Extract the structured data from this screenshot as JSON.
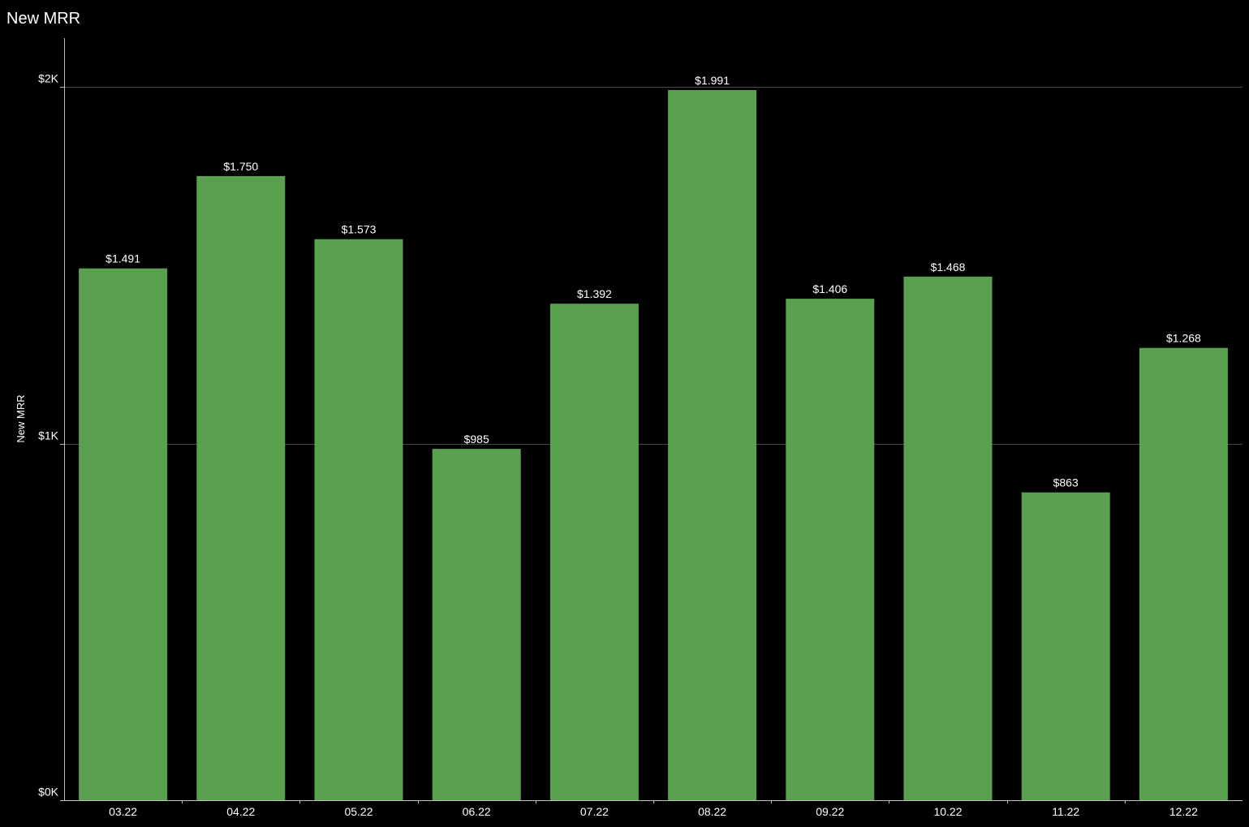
{
  "chart_data": {
    "type": "bar",
    "title": "New MRR",
    "xlabel": "",
    "ylabel": "New MRR",
    "categories": [
      "03.22",
      "04.22",
      "05.22",
      "06.22",
      "07.22",
      "08.22",
      "09.22",
      "10.22",
      "11.22",
      "12.22"
    ],
    "values": [
      1491,
      1750,
      1573,
      985,
      1392,
      1991,
      1406,
      1468,
      863,
      1268
    ],
    "value_labels": [
      "$1.491",
      "$1.750",
      "$1.573",
      "$985",
      "$1.392",
      "$1.991",
      "$1.406",
      "$1.468",
      "$863",
      "$1.268"
    ],
    "ylim": [
      0,
      2000
    ],
    "y_ticks": [
      {
        "value": 0,
        "label": "$0K"
      },
      {
        "value": 1000,
        "label": "$1K"
      },
      {
        "value": 2000,
        "label": "$2K"
      }
    ],
    "grid": true,
    "legend": "none",
    "colors": {
      "bar": "#59a14f",
      "background": "#000000",
      "gridline": "#4a4a4a",
      "axis": "#bfbfbf",
      "text": "#ffffff"
    }
  }
}
